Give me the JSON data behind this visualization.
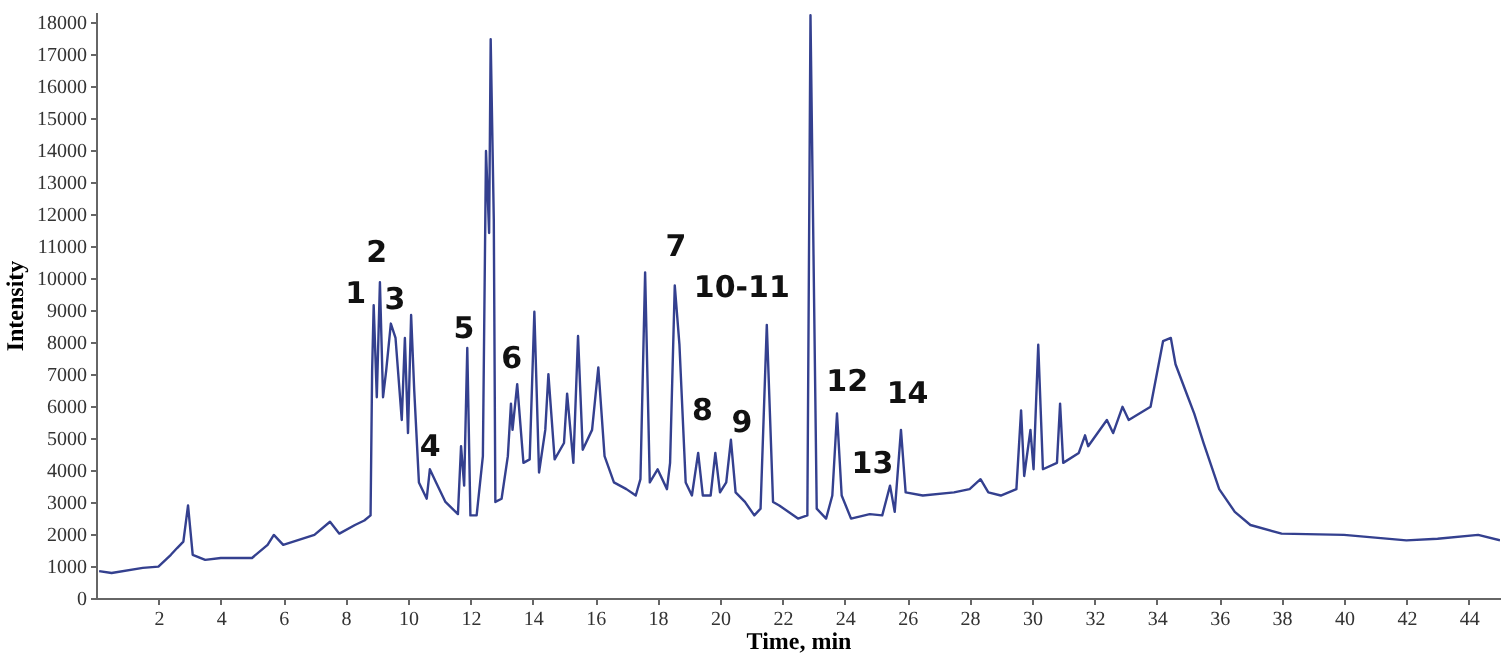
{
  "chart_data": {
    "type": "line",
    "xlabel": "Time, min",
    "ylabel": "Intensity",
    "xlim": [
      0,
      45
    ],
    "xticks": [
      2,
      4,
      6,
      8,
      10,
      12,
      14,
      16,
      18,
      20,
      22,
      24,
      26,
      28,
      30,
      32,
      34,
      36,
      38,
      40,
      42,
      44
    ],
    "ylim": [
      0,
      18300
    ],
    "yticks": [
      0,
      1000,
      2000,
      3000,
      4000,
      5000,
      6000,
      7000,
      8000,
      9000,
      10000,
      11000,
      12000,
      13000,
      14000,
      15000,
      16000,
      17000,
      18000
    ],
    "grid": false,
    "marker": "none",
    "line_style": "solid",
    "x": [
      0.1,
      0.5,
      1.5,
      2.0,
      2.4,
      2.6,
      2.8,
      2.95,
      3.1,
      3.5,
      4.0,
      5.0,
      5.5,
      5.7,
      6.0,
      7.0,
      7.5,
      7.8,
      8.3,
      8.6,
      8.8,
      8.85,
      8.9,
      9.0,
      9.1,
      9.2,
      9.3,
      9.45,
      9.6,
      9.8,
      9.9,
      10.0,
      10.1,
      10.2,
      10.35,
      10.6,
      10.7,
      10.9,
      11.2,
      11.6,
      11.7,
      11.8,
      11.9,
      12.0,
      12.2,
      12.4,
      12.5,
      12.6,
      12.65,
      12.75,
      12.8,
      13.0,
      13.2,
      13.3,
      13.35,
      13.5,
      13.7,
      13.9,
      14.05,
      14.2,
      14.4,
      14.5,
      14.7,
      15.0,
      15.1,
      15.3,
      15.45,
      15.6,
      15.9,
      16.1,
      16.3,
      16.6,
      17.0,
      17.3,
      17.45,
      17.6,
      17.75,
      18.0,
      18.3,
      18.4,
      18.55,
      18.7,
      18.9,
      19.1,
      19.3,
      19.45,
      19.7,
      19.85,
      20.0,
      20.2,
      20.35,
      20.5,
      20.8,
      21.1,
      21.3,
      21.5,
      21.7,
      21.9,
      22.5,
      22.8,
      22.9,
      23.1,
      23.4,
      23.6,
      23.75,
      23.9,
      24.2,
      24.8,
      25.2,
      25.45,
      25.6,
      25.8,
      25.95,
      26.5,
      27.5,
      28.0,
      28.35,
      28.6,
      29.0,
      29.5,
      29.65,
      29.75,
      29.95,
      30.05,
      30.2,
      30.35,
      30.8,
      30.9,
      31.0,
      31.5,
      31.7,
      31.8,
      32.4,
      32.6,
      32.9,
      33.1,
      33.8,
      34.2,
      34.45,
      34.6,
      35.0,
      35.2,
      35.5,
      36.0,
      36.5,
      37.0,
      38.0,
      40.0,
      42.0,
      43.0,
      44.3,
      45.0
    ],
    "series": [
      {
        "color": "#34408f",
        "values": [
          840,
          780,
          940,
          980,
          1350,
          1560,
          1760,
          2890,
          1350,
          1190,
          1250,
          1250,
          1660,
          1970,
          1660,
          1970,
          2380,
          2010,
          2280,
          2420,
          2580,
          7090,
          9140,
          6270,
          9860,
          6270,
          7090,
          8570,
          8120,
          5560,
          8120,
          5150,
          8840,
          6480,
          3610,
          3100,
          4020,
          3610,
          3000,
          2620,
          4740,
          3510,
          7810,
          2580,
          2580,
          4430,
          13960,
          11400,
          17450,
          11810,
          3000,
          3100,
          4430,
          6070,
          5250,
          6680,
          4220,
          4330,
          8940,
          3920,
          5250,
          6990,
          4330,
          4840,
          6380,
          4220,
          8180,
          4630,
          5250,
          7200,
          4430,
          3610,
          3400,
          3200,
          3710,
          10170,
          3610,
          4020,
          3400,
          4220,
          9760,
          7910,
          3610,
          3200,
          4530,
          3200,
          3200,
          4530,
          3300,
          3610,
          4940,
          3300,
          3000,
          2580,
          2790,
          8530,
          3000,
          2890,
          2480,
          2580,
          18200,
          2790,
          2480,
          3200,
          5760,
          3200,
          2480,
          2620,
          2580,
          3510,
          2690,
          5250,
          3300,
          3200,
          3300,
          3400,
          3710,
          3300,
          3200,
          3400,
          5860,
          3810,
          5250,
          4020,
          7910,
          4020,
          4220,
          6070,
          4220,
          4530,
          5080,
          4740,
          5560,
          5150,
          5970,
          5560,
          5970,
          8020,
          8120,
          7300,
          6270,
          5760,
          4840,
          3400,
          2690,
          2280,
          2010,
          1970,
          1800,
          1850,
          1970,
          1800
        ]
      }
    ],
    "annotations": [
      "1",
      "2",
      "3",
      "4",
      "5",
      "6",
      "7",
      "10-11",
      "8",
      "9",
      "12",
      "13",
      "14"
    ]
  }
}
